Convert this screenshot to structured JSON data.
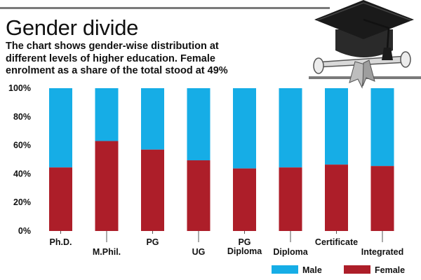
{
  "header": {
    "title": "Gender divide",
    "subtitle_lines": [
      "The chart shows gender-wise distribution at",
      "different levels of higher education. Female",
      "enrolment as a share of the total stood at 49%"
    ]
  },
  "illustration": {
    "icon": "graduation-cap-diploma-icon"
  },
  "colors": {
    "male": "#16ade6",
    "female": "#ad1e29",
    "text": "#111111"
  },
  "chart_data": {
    "type": "bar",
    "stacked": true,
    "categories": [
      "Ph.D.",
      "M.Phil.",
      "PG",
      "UG",
      "PG Diploma",
      "Diploma",
      "Certificate",
      "Integrated"
    ],
    "category_labels": [
      [
        "Ph.D."
      ],
      [
        "M.Phil."
      ],
      [
        "PG"
      ],
      [
        "UG"
      ],
      [
        "PG",
        "Diploma"
      ],
      [
        "Diploma"
      ],
      [
        "Certificate"
      ],
      [
        "Integrated"
      ]
    ],
    "series": [
      {
        "name": "Female",
        "values": [
          44.5,
          63,
          57,
          49.5,
          43.8,
          44.5,
          46.5,
          45.5
        ]
      },
      {
        "name": "Male",
        "values": [
          55.5,
          37,
          43,
          50.5,
          56.2,
          55.5,
          53.5,
          54.5
        ]
      }
    ],
    "yticks": [
      "0%",
      "20%",
      "40%",
      "60%",
      "80%",
      "100%"
    ],
    "ylim": [
      0,
      100
    ],
    "grid": false,
    "legend": {
      "position": "bottom-right",
      "entries": [
        "Male",
        "Female"
      ]
    }
  }
}
